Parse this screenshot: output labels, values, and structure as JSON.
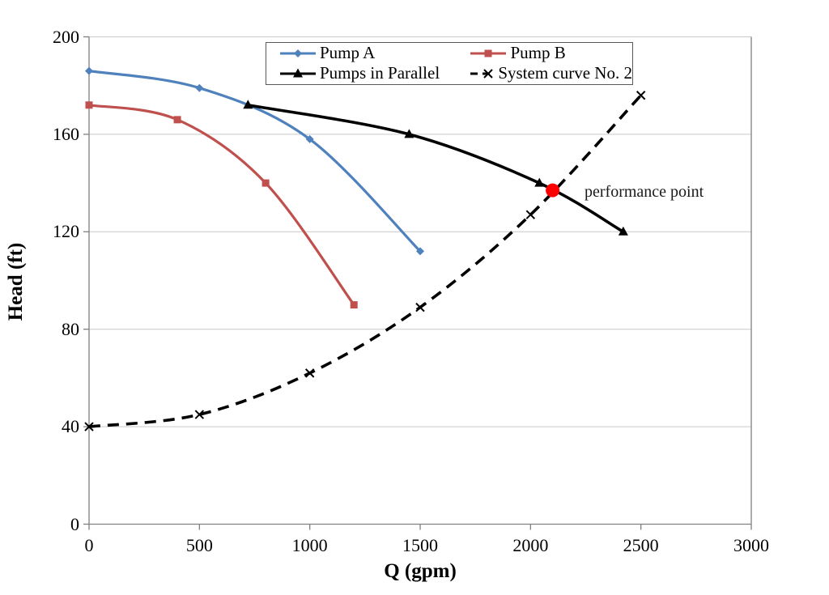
{
  "figure": {
    "background": "#ffffff",
    "text_color": "#000000"
  },
  "chart_data": {
    "type": "line",
    "title": "",
    "xlabel": "Q (gpm)",
    "ylabel": "Head (ft)",
    "xlim": [
      0,
      3000
    ],
    "ylim": [
      0,
      200
    ],
    "xticks": [
      0,
      500,
      1000,
      1500,
      2000,
      2500,
      3000
    ],
    "yticks": [
      0,
      40,
      80,
      120,
      160,
      200
    ],
    "grid": "horizontal-light-gray",
    "grid_color": "#c9c9c9",
    "axis_color": "#808080",
    "legend_position": "top-center-inside",
    "series": [
      {
        "name": "Pump A",
        "color": "#4F81BD",
        "marker": "diamond",
        "line_style": "solid",
        "x": [
          0,
          500,
          1000,
          1500
        ],
        "y": [
          186,
          179,
          158,
          112
        ]
      },
      {
        "name": "Pump B",
        "color": "#C0504D",
        "marker": "square",
        "line_style": "solid",
        "x": [
          0,
          400,
          800,
          1200
        ],
        "y": [
          172,
          166,
          140,
          90
        ]
      },
      {
        "name": "Pumps in Parallel",
        "color": "#000000",
        "marker": "triangle",
        "line_style": "solid",
        "x": [
          720,
          1450,
          2040,
          2420
        ],
        "y": [
          172,
          160,
          140,
          120
        ]
      },
      {
        "name": "System curve No. 2",
        "color": "#000000",
        "marker": "x",
        "line_style": "dashed",
        "x": [
          0,
          500,
          1000,
          1500,
          2000,
          2500
        ],
        "y": [
          40,
          45,
          62,
          89,
          127,
          176
        ]
      }
    ],
    "annotations": [
      {
        "type": "point-with-label",
        "label": "performance point",
        "x": 2100,
        "y": 137,
        "point_color": "#FF0000"
      }
    ]
  }
}
